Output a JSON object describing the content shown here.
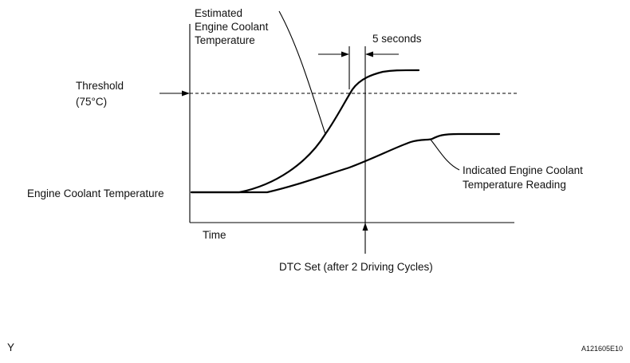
{
  "diagram": {
    "labels": {
      "estimated": [
        "Estimated",
        "Engine Coolant",
        "Temperature"
      ],
      "seconds": "5 seconds",
      "threshold": [
        "Threshold",
        "(75°C)"
      ],
      "y_axis": "Engine Coolant Temperature",
      "indicated": [
        "Indicated Engine Coolant",
        "Temperature Reading"
      ],
      "x_axis": "Time",
      "dtc": "DTC Set (after 2 Driving Cycles)",
      "corner_left": "Y",
      "figure_id": "A121605E10"
    }
  }
}
